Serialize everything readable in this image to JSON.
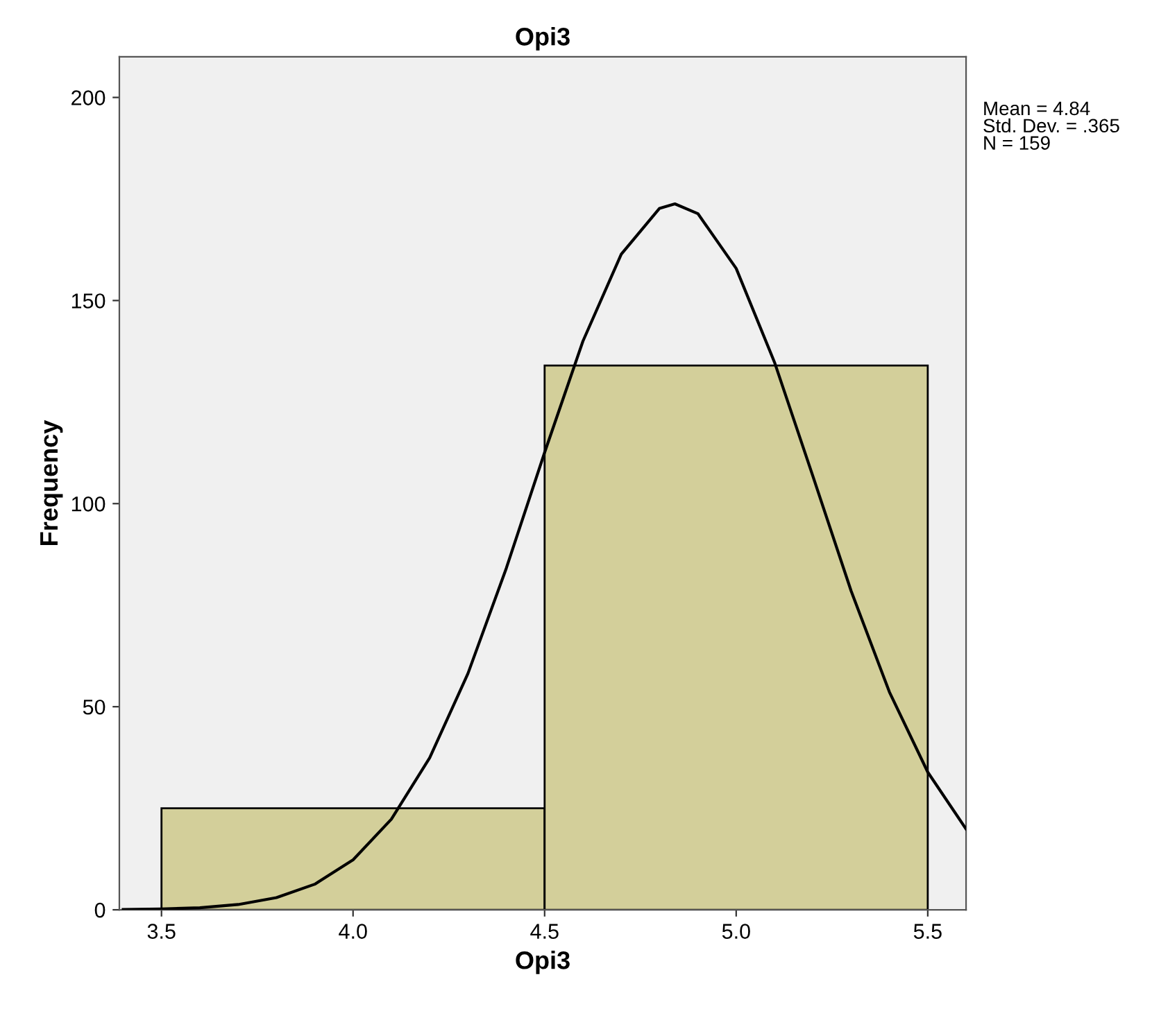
{
  "chart_data": {
    "type": "histogram",
    "title": "Opi3",
    "xlabel": "Opi3",
    "ylabel": "Frequency",
    "bins": [
      3.5,
      4.5,
      5.5
    ],
    "series": [
      {
        "color": "#d3cf9a",
        "values": [
          25,
          134
        ]
      },
      {
        "type": "line",
        "color": "#000000",
        "x": [
          3.4,
          3.5,
          3.6,
          3.7,
          3.8,
          3.9,
          4.0,
          4.1,
          4.2,
          4.3,
          4.4,
          4.5,
          4.6,
          4.7,
          4.8,
          4.84,
          4.9,
          5.0,
          5.1,
          5.2,
          5.3,
          5.4,
          5.5,
          5.6
        ],
        "values": [
          0.1,
          0.2,
          0.5,
          1.3,
          3.0,
          6.3,
          12.3,
          22.3,
          37.4,
          58.2,
          84.1,
          112.6,
          140.0,
          161.4,
          172.7,
          173.8,
          171.4,
          157.9,
          134.8,
          106.8,
          78.5,
          53.6,
          33.9,
          19.9
        ]
      }
    ],
    "xlim": [
      3.39,
      5.6
    ],
    "ylim": [
      0,
      210
    ],
    "xticks": [
      3.5,
      {
        "value": 4,
        "label": "4.0"
      },
      4.5,
      {
        "value": 5,
        "label": "5.0"
      },
      5.5
    ],
    "yticks": [
      0,
      50,
      100,
      150,
      200
    ],
    "grid": false,
    "legend": false,
    "annotations": [
      "Mean = 4.84\nStd. Dev. = .365\nN = 159"
    ]
  }
}
